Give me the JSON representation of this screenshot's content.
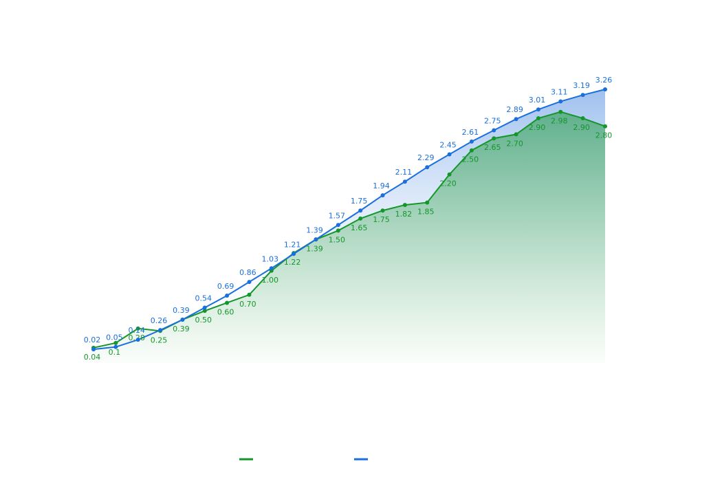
{
  "chart_data": {
    "type": "area-line",
    "categories": [
      null,
      null,
      null,
      null,
      null,
      null,
      null,
      null,
      null,
      null,
      null,
      null,
      null,
      null,
      null,
      null,
      null,
      null,
      null,
      null,
      null,
      null,
      null,
      null
    ],
    "ylim": [
      -0.15,
      3.5
    ],
    "series": [
      {
        "color": "#14962a",
        "label_position": "below",
        "values": [
          0.04,
          0.1,
          0.28,
          0.25,
          0.39,
          0.5,
          0.6,
          0.7,
          1.0,
          1.22,
          1.39,
          1.5,
          1.65,
          1.75,
          1.82,
          1.85,
          2.2,
          2.5,
          2.65,
          2.7,
          2.9,
          2.98,
          2.9,
          2.8
        ],
        "value_labels": [
          "0.04",
          "0.1",
          "0.28",
          "0.25",
          "0.39",
          "0.50",
          "0.60",
          "0.70",
          "1.00",
          "1.22",
          "1.39",
          "1.50",
          "1.65",
          "1.75",
          "1.82",
          "1.85",
          "2.20",
          "2.50",
          "2.65",
          "2.70",
          "2.90",
          "2.98",
          "2.90",
          "2.80"
        ]
      },
      {
        "color": "#1a6fdc",
        "label_position": "above",
        "values": [
          0.02,
          0.05,
          0.14,
          0.26,
          0.39,
          0.54,
          0.69,
          0.86,
          1.03,
          1.21,
          1.39,
          1.57,
          1.75,
          1.94,
          2.11,
          2.29,
          2.45,
          2.61,
          2.75,
          2.89,
          3.01,
          3.11,
          3.19,
          3.26
        ],
        "value_labels": [
          "0.02",
          "0.05",
          "0.14",
          "0.26",
          "0.39",
          "0.54",
          "0.69",
          "0.86",
          "1.03",
          "1.21",
          "1.39",
          "1.57",
          "1.75",
          "1.94",
          "2.11",
          "2.29",
          "2.45",
          "2.61",
          "2.75",
          "2.89",
          "3.01",
          "3.11",
          "3.19",
          "3.26"
        ]
      }
    ]
  }
}
